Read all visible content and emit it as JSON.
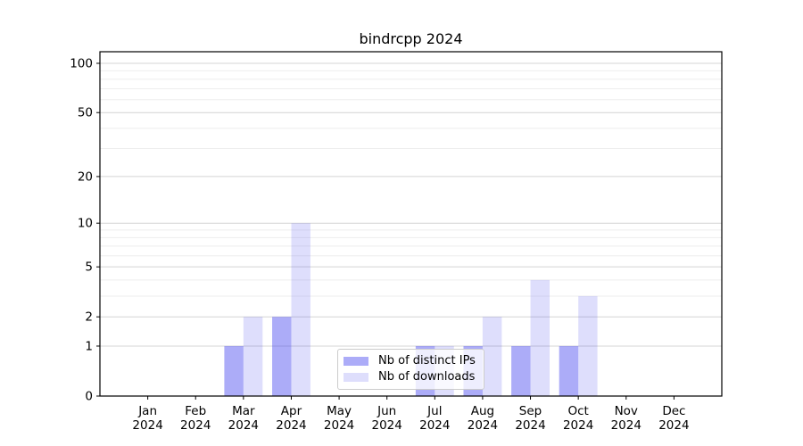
{
  "chart_data": {
    "type": "bar",
    "title": "bindrcpp 2024",
    "categories": [
      "Jan 2024",
      "Feb 2024",
      "Mar 2024",
      "Apr 2024",
      "May 2024",
      "Jun 2024",
      "Jul 2024",
      "Aug 2024",
      "Sep 2024",
      "Oct 2024",
      "Nov 2024",
      "Dec 2024"
    ],
    "series": [
      {
        "name": "Nb of distinct IPs",
        "color": "rgba(70,70,240,0.45)",
        "values": [
          0,
          0,
          1,
          2,
          0,
          0,
          1,
          1,
          1,
          1,
          0,
          0
        ]
      },
      {
        "name": "Nb of downloads",
        "color": "rgba(70,70,240,0.18)",
        "values": [
          0,
          0,
          2,
          10,
          0,
          0,
          1,
          2,
          4,
          3,
          0,
          0
        ]
      }
    ],
    "xlabel": "",
    "ylabel": "",
    "yscale": "log1p",
    "ylim": [
      0,
      117.6
    ],
    "yticks": [
      0,
      1,
      2,
      5,
      10,
      20,
      50,
      100
    ],
    "yticks_minor": [
      3,
      4,
      6,
      7,
      8,
      9,
      30,
      40,
      60,
      70,
      80,
      90
    ],
    "grid": true,
    "legend_position": "inside-bottom-center",
    "colors": {
      "grid_major": "#d4d4d4",
      "grid_minor": "#eeeeee",
      "axis": "#000000",
      "text": "#000000"
    }
  }
}
